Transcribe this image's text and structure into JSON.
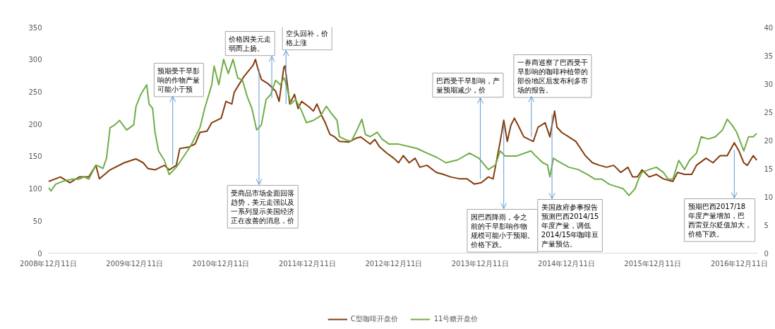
{
  "chart_data": {
    "type": "line",
    "xlim": [
      "2008-12-11",
      "2017-02-27"
    ],
    "xticks": [
      {
        "value": "2008-12-11",
        "label": "2008年12月11日"
      },
      {
        "value": "2009-12-11",
        "label": "2009年12月11日"
      },
      {
        "value": "2010-12-11",
        "label": "2010年12月11日"
      },
      {
        "value": "2011-12-11",
        "label": "2011年12月11日"
      },
      {
        "value": "2012-12-11",
        "label": "2012年12月11日"
      },
      {
        "value": "2013-12-11",
        "label": "2013年12月11日"
      },
      {
        "value": "2014-12-11",
        "label": "2014年12月11日"
      },
      {
        "value": "2015-12-11",
        "label": "2015年12月11日"
      },
      {
        "value": "2016-12-11",
        "label": "2016年12月11日"
      }
    ],
    "ylim": [
      0,
      350
    ],
    "yticks": [
      0,
      50,
      100,
      150,
      200,
      250,
      300,
      350
    ],
    "y2lim": [
      0,
      40
    ],
    "y2ticks": [
      0,
      5,
      10,
      15,
      20,
      25,
      30,
      35,
      40
    ],
    "legend": "bottom",
    "series": [
      {
        "name": "C型咖啡开盘价",
        "color": "#843c0c",
        "x": [
          "2008-12-12",
          "2009-01-31",
          "2009-03-12",
          "2009-04-21",
          "2009-05-31",
          "2009-06-30",
          "2009-07-15",
          "2009-08-29",
          "2009-10-28",
          "2009-12-17",
          "2010-01-16",
          "2010-02-05",
          "2010-03-07",
          "2010-04-16",
          "2010-05-06",
          "2010-06-05",
          "2010-06-20",
          "2010-07-25",
          "2010-08-24",
          "2010-09-13",
          "2010-10-13",
          "2010-11-02",
          "2010-12-12",
          "2011-01-01",
          "2011-01-26",
          "2011-02-05",
          "2011-03-02",
          "2011-03-17",
          "2011-04-06",
          "2011-04-26",
          "2011-05-06",
          "2011-05-16",
          "2011-05-31",
          "2011-06-30",
          "2011-07-30",
          "2011-08-14",
          "2011-09-03",
          "2011-09-08",
          "2011-09-28",
          "2011-10-18",
          "2011-11-02",
          "2011-11-17",
          "2011-12-17",
          "2012-01-06",
          "2012-01-21",
          "2012-02-10",
          "2012-02-25",
          "2012-03-16",
          "2012-04-05",
          "2012-04-25",
          "2012-06-04",
          "2012-07-04",
          "2012-07-24",
          "2012-09-02",
          "2012-09-22",
          "2012-10-11",
          "2012-11-11",
          "2012-12-11",
          "2012-12-31",
          "2013-01-20",
          "2013-02-14",
          "2013-03-11",
          "2013-03-31",
          "2013-04-30",
          "2013-06-09",
          "2013-07-09",
          "2013-08-08",
          "2013-09-17",
          "2013-10-17",
          "2013-11-16",
          "2013-12-16",
          "2014-01-15",
          "2014-02-04",
          "2014-02-19",
          "2014-03-06",
          "2014-03-21",
          "2014-04-05",
          "2014-04-20",
          "2014-05-05",
          "2014-05-25",
          "2014-06-14",
          "2014-07-24",
          "2014-08-13",
          "2014-09-12",
          "2014-10-02",
          "2014-10-22",
          "2014-11-01",
          "2014-11-21",
          "2014-12-21",
          "2015-01-20",
          "2015-03-01",
          "2015-03-31",
          "2015-04-30",
          "2015-05-30",
          "2015-06-29",
          "2015-07-29",
          "2015-08-28",
          "2015-09-17",
          "2015-10-07",
          "2015-10-27",
          "2015-11-26",
          "2015-12-26",
          "2016-01-25",
          "2016-03-05",
          "2016-03-25",
          "2016-04-24",
          "2016-05-24",
          "2016-06-13",
          "2016-07-23",
          "2016-08-22",
          "2016-09-21",
          "2016-10-21",
          "2016-11-20",
          "2016-12-10",
          "2016-12-30",
          "2017-01-14",
          "2017-02-08",
          "2017-02-23"
        ],
        "values": [
          111,
          118,
          109,
          118,
          118,
          136,
          115,
          129,
          140,
          146,
          140,
          131,
          129,
          136,
          129,
          136,
          162,
          164,
          169,
          187,
          189,
          202,
          209,
          235,
          231,
          249,
          264,
          273,
          282,
          291,
          300,
          286,
          269,
          262,
          251,
          235,
          288,
          290,
          231,
          246,
          224,
          235,
          227,
          220,
          231,
          213,
          202,
          184,
          180,
          173,
          172,
          178,
          180,
          169,
          176,
          165,
          155,
          147,
          140,
          151,
          140,
          147,
          133,
          136,
          125,
          122,
          118,
          115,
          115,
          107,
          109,
          118,
          115,
          144,
          173,
          206,
          173,
          198,
          209,
          195,
          180,
          173,
          195,
          202,
          180,
          220,
          195,
          187,
          180,
          173,
          151,
          140,
          136,
          133,
          136,
          125,
          133,
          118,
          118,
          129,
          118,
          122,
          115,
          111,
          125,
          122,
          122,
          136,
          147,
          140,
          151,
          151,
          171,
          158,
          140,
          136,
          151,
          144
        ]
      },
      {
        "name": "11号糖开盘价",
        "color": "#70ad47",
        "axis": "y2",
        "x": [
          "2008-12-12",
          "2008-12-22",
          "2009-01-11",
          "2009-02-10",
          "2009-03-21",
          "2009-04-21",
          "2009-05-11",
          "2009-05-31",
          "2009-06-30",
          "2009-07-30",
          "2009-08-14",
          "2009-08-29",
          "2009-09-18",
          "2009-10-08",
          "2009-11-07",
          "2009-12-07",
          "2009-12-17",
          "2010-01-06",
          "2010-01-31",
          "2010-02-10",
          "2010-02-25",
          "2010-03-07",
          "2010-03-22",
          "2010-04-16",
          "2010-05-06",
          "2010-06-05",
          "2010-06-25",
          "2010-08-04",
          "2010-09-13",
          "2010-10-03",
          "2010-11-02",
          "2010-11-12",
          "2010-12-02",
          "2010-12-22",
          "2011-01-11",
          "2011-01-31",
          "2011-02-20",
          "2011-03-12",
          "2011-04-01",
          "2011-04-21",
          "2011-05-11",
          "2011-05-31",
          "2011-06-20",
          "2011-07-10",
          "2011-07-30",
          "2011-08-19",
          "2011-09-03",
          "2011-09-08",
          "2011-10-03",
          "2011-10-23",
          "2011-11-17",
          "2011-12-07",
          "2012-01-06",
          "2012-02-05",
          "2012-03-01",
          "2012-03-21",
          "2012-04-15",
          "2012-04-25",
          "2012-05-25",
          "2012-06-14",
          "2012-07-04",
          "2012-07-29",
          "2012-08-13",
          "2012-09-02",
          "2012-10-02",
          "2012-10-22",
          "2012-11-21",
          "2012-12-31",
          "2013-02-09",
          "2013-03-21",
          "2013-04-30",
          "2013-06-09",
          "2013-07-19",
          "2013-09-07",
          "2013-10-27",
          "2013-12-06",
          "2014-01-15",
          "2014-02-14",
          "2014-03-06",
          "2014-03-26",
          "2014-04-15",
          "2014-05-15",
          "2014-07-14",
          "2014-08-03",
          "2014-09-02",
          "2014-09-22",
          "2014-10-02",
          "2014-10-17",
          "2014-11-01",
          "2014-12-21",
          "2015-01-30",
          "2015-03-11",
          "2015-04-10",
          "2015-05-10",
          "2015-06-09",
          "2015-07-09",
          "2015-08-08",
          "2015-09-02",
          "2015-09-27",
          "2015-10-12",
          "2015-10-27",
          "2015-11-26",
          "2015-12-26",
          "2016-01-25",
          "2016-02-14",
          "2016-03-05",
          "2016-03-30",
          "2016-04-24",
          "2016-05-14",
          "2016-06-13",
          "2016-07-03",
          "2016-08-02",
          "2016-09-01",
          "2016-10-01",
          "2016-10-21",
          "2016-11-10",
          "2016-11-30",
          "2016-12-30",
          "2017-01-19",
          "2017-02-08",
          "2017-02-23"
        ],
        "values": [
          11.6,
          11.0,
          12.2,
          12.7,
          13.1,
          13.1,
          13.5,
          13.1,
          15.6,
          15.0,
          16.8,
          22.2,
          22.7,
          23.5,
          21.8,
          22.7,
          26.0,
          28.1,
          29.8,
          26.4,
          25.6,
          21.4,
          18.1,
          16.4,
          13.9,
          15.2,
          16.4,
          18.9,
          22.2,
          25.6,
          29.8,
          33.1,
          29.8,
          34.3,
          31.8,
          34.3,
          31.0,
          30.6,
          27.7,
          25.6,
          21.8,
          22.7,
          27.2,
          28.1,
          30.6,
          29.8,
          31.0,
          30.6,
          26.4,
          27.2,
          25.2,
          23.1,
          23.5,
          24.3,
          26.0,
          24.8,
          23.5,
          20.6,
          20.0,
          19.8,
          21.4,
          23.7,
          21.0,
          20.6,
          21.4,
          20.2,
          19.3,
          19.3,
          18.9,
          18.5,
          17.7,
          17.0,
          16.0,
          16.5,
          17.7,
          16.8,
          14.8,
          15.6,
          18.1,
          17.2,
          17.2,
          17.2,
          18.1,
          17.2,
          16.0,
          15.6,
          13.5,
          16.8,
          16.4,
          15.2,
          14.8,
          13.9,
          13.1,
          13.1,
          12.2,
          11.8,
          11.4,
          10.2,
          11.4,
          13.1,
          14.3,
          14.8,
          15.2,
          14.3,
          13.1,
          13.1,
          16.4,
          14.8,
          16.4,
          17.7,
          20.6,
          20.2,
          20.6,
          21.8,
          23.7,
          22.7,
          21.4,
          18.1,
          20.6,
          20.6,
          21.2
        ]
      }
    ],
    "annotations": [
      {
        "text": "预期受干旱影响的作物产量可能小于预",
        "x": "2010-05-21",
        "y": 137
      },
      {
        "text": "价格因美元走弱而上扬。",
        "x": "2011-07-14",
        "y": 240
      },
      {
        "text": "空头回补，价格上涨",
        "x": "2011-09-12",
        "y": 231
      },
      {
        "text": "受商品市场全面回落趋势，美元走强以及一系列显示美国经济正在改善的消息，价",
        "x": "2011-05-21",
        "y": 285
      },
      {
        "text": "巴西受干旱影响，产量预期减少，价",
        "x": "2013-12-12",
        "y": 115
      },
      {
        "text": "一券商巡察了巴西受干旱影响的咖啡种植带的部份地区后发布利多市场的报告。",
        "x": "2014-07-16",
        "y": 180
      },
      {
        "text": "因巴西降雨，令之前的干旱影响作物规模可能小于预期。价格下跌。",
        "x": "2014-03-21",
        "y": 200
      },
      {
        "text": "美国政府参事报告预测巴西2014/15年度产量，调低2014/15年咖啡豆产量预估。",
        "x": "2014-10-11",
        "y": 215
      },
      {
        "text": "预期巴西2017/18年度产量增加，巴西雷亚尔贬值加大，价格下跌。",
        "x": "2016-11-20",
        "y": 160
      }
    ]
  }
}
